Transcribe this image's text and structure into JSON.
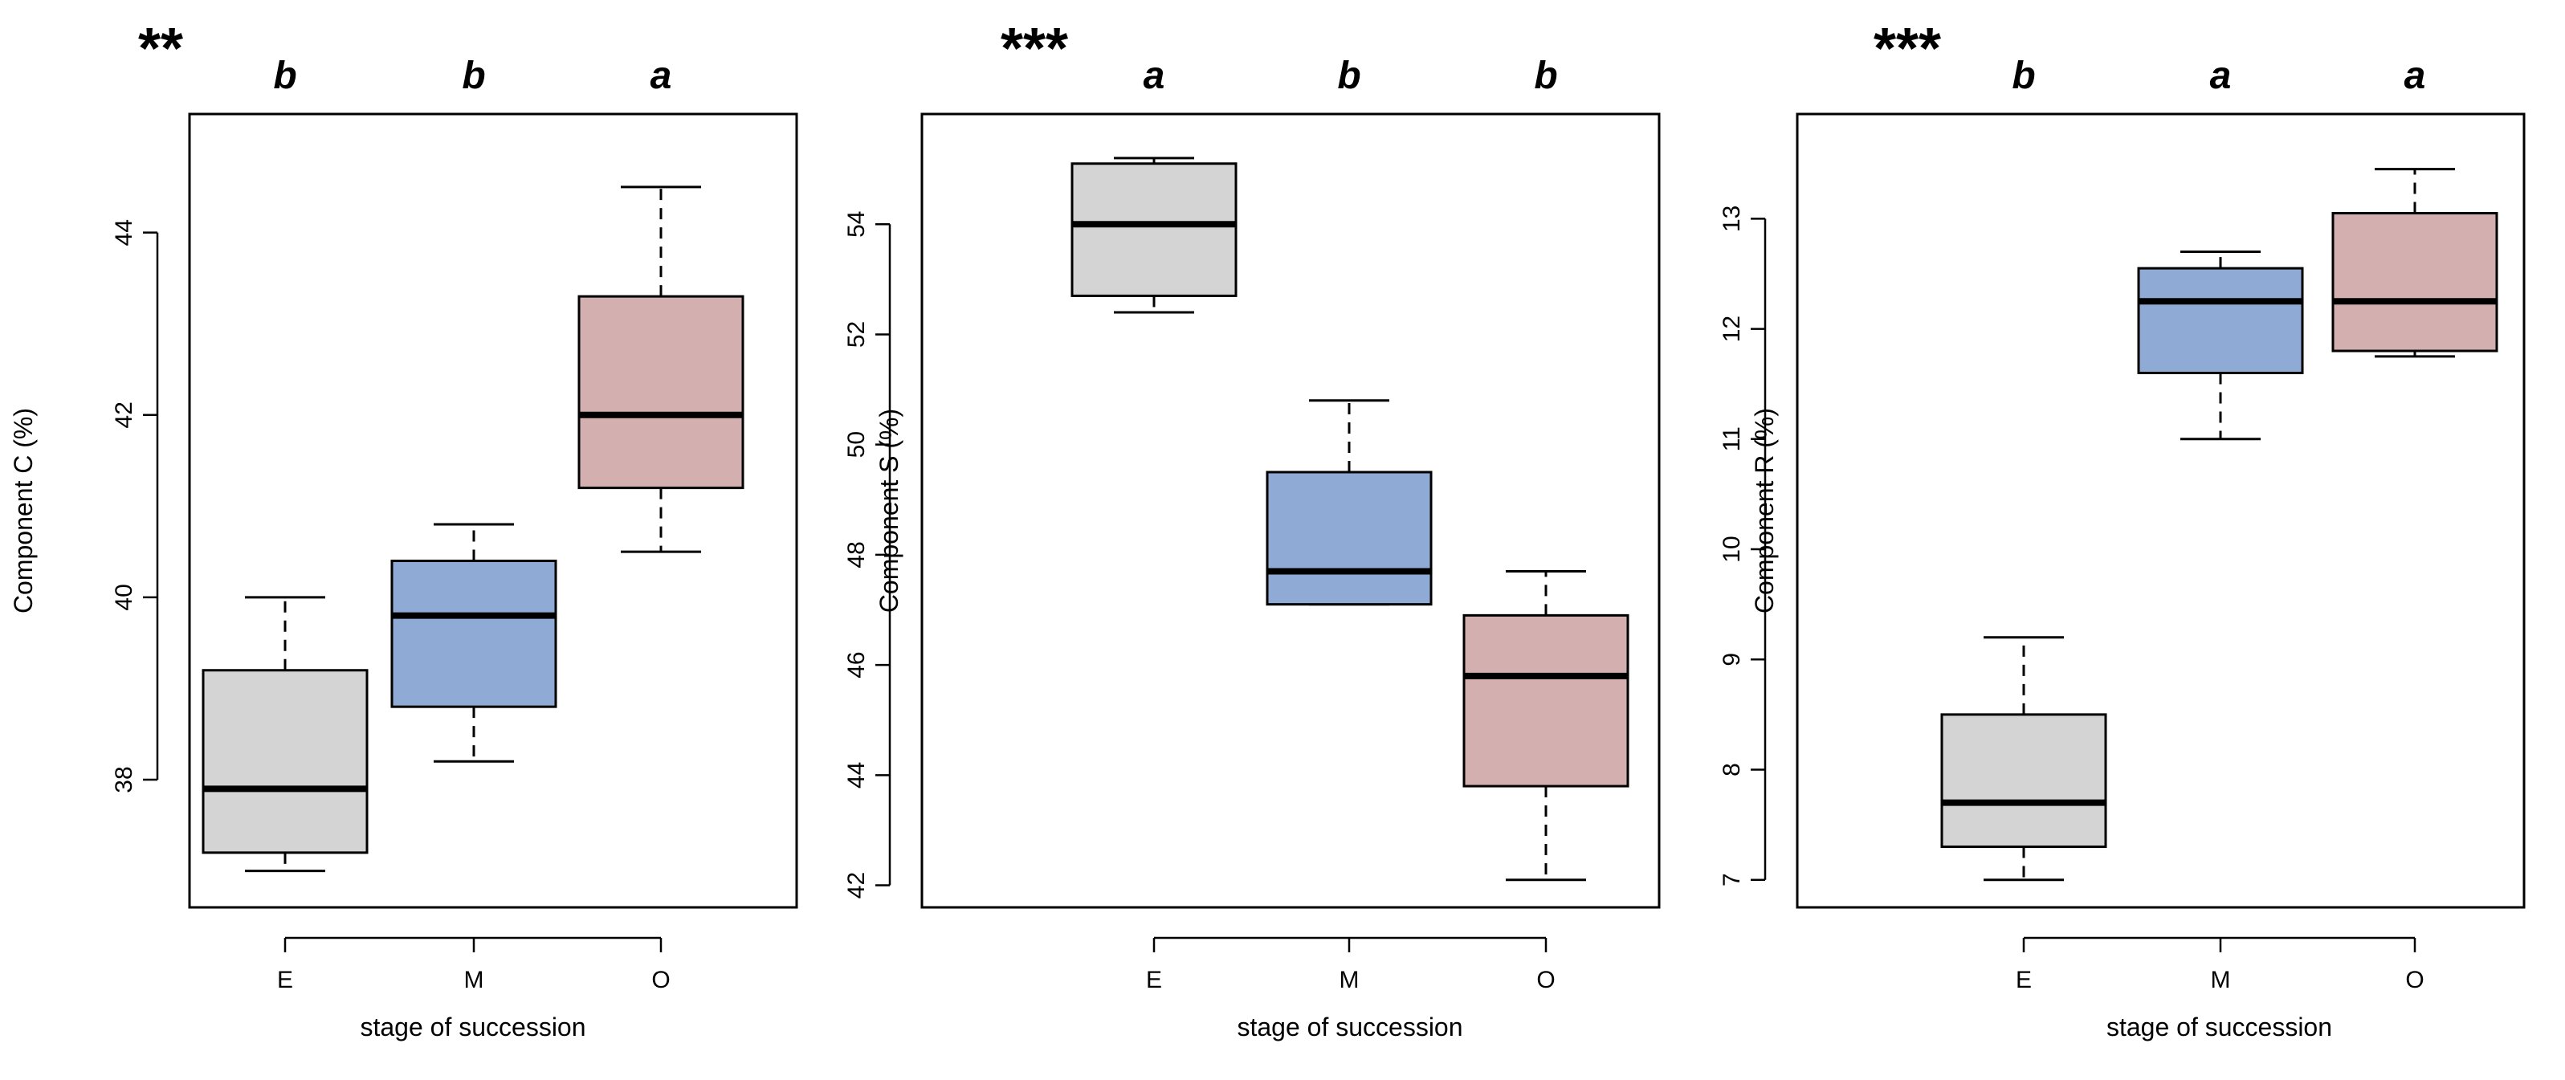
{
  "chart_data": [
    {
      "type": "boxplot",
      "significance": "**",
      "xlabel": "stage of succession",
      "ylabel": "Component C (%)",
      "ylim": [
        36.6,
        45.3
      ],
      "yticks": [
        38,
        40,
        42,
        44
      ],
      "colors": [
        "#d4d4d4",
        "#8eaad5",
        "#d3afaf"
      ],
      "categories": [
        "E",
        "M",
        "O"
      ],
      "letters": [
        "b",
        "b",
        "a"
      ],
      "boxes": [
        {
          "whisker_low": 37.0,
          "q1": 37.2,
          "median": 37.9,
          "q3": 39.2,
          "whisker_high": 40.0
        },
        {
          "whisker_low": 38.2,
          "q1": 38.8,
          "median": 39.8,
          "q3": 40.4,
          "whisker_high": 40.8
        },
        {
          "whisker_low": 40.5,
          "q1": 41.2,
          "median": 42.0,
          "q3": 43.3,
          "whisker_high": 44.5
        }
      ]
    },
    {
      "type": "boxplot",
      "significance": "***",
      "xlabel": "stage of succession",
      "ylabel": "Component S (%)",
      "ylim": [
        41.6,
        56.0
      ],
      "yticks": [
        42,
        44,
        46,
        48,
        50,
        52,
        54
      ],
      "colors": [
        "#d4d4d4",
        "#8eaad5",
        "#d3afaf"
      ],
      "categories": [
        "E",
        "M",
        "O"
      ],
      "letters": [
        "a",
        "b",
        "b"
      ],
      "boxes": [
        {
          "whisker_low": 52.4,
          "q1": 52.7,
          "median": 54.0,
          "q3": 55.1,
          "whisker_high": 55.2
        },
        {
          "whisker_low": 47.1,
          "q1": 47.1,
          "median": 47.7,
          "q3": 49.5,
          "whisker_high": 50.8
        },
        {
          "whisker_low": 42.1,
          "q1": 43.8,
          "median": 45.8,
          "q3": 46.9,
          "whisker_high": 47.7
        }
      ]
    },
    {
      "type": "boxplot",
      "significance": "***",
      "xlabel": "stage of succession",
      "ylabel": "Component R (%)",
      "ylim": [
        6.75,
        13.95
      ],
      "yticks": [
        7,
        8,
        9,
        10,
        11,
        12,
        13
      ],
      "colors": [
        "#d4d4d4",
        "#8eaad5",
        "#d3afaf"
      ],
      "categories": [
        "E",
        "M",
        "O"
      ],
      "letters": [
        "b",
        "a",
        "a"
      ],
      "boxes": [
        {
          "whisker_low": 7.0,
          "q1": 7.3,
          "median": 7.7,
          "q3": 8.5,
          "whisker_high": 9.2
        },
        {
          "whisker_low": 11.0,
          "q1": 11.6,
          "median": 12.25,
          "q3": 12.55,
          "whisker_high": 12.7
        },
        {
          "whisker_low": 11.75,
          "q1": 11.8,
          "median": 12.25,
          "q3": 13.05,
          "whisker_high": 13.45
        }
      ]
    }
  ]
}
